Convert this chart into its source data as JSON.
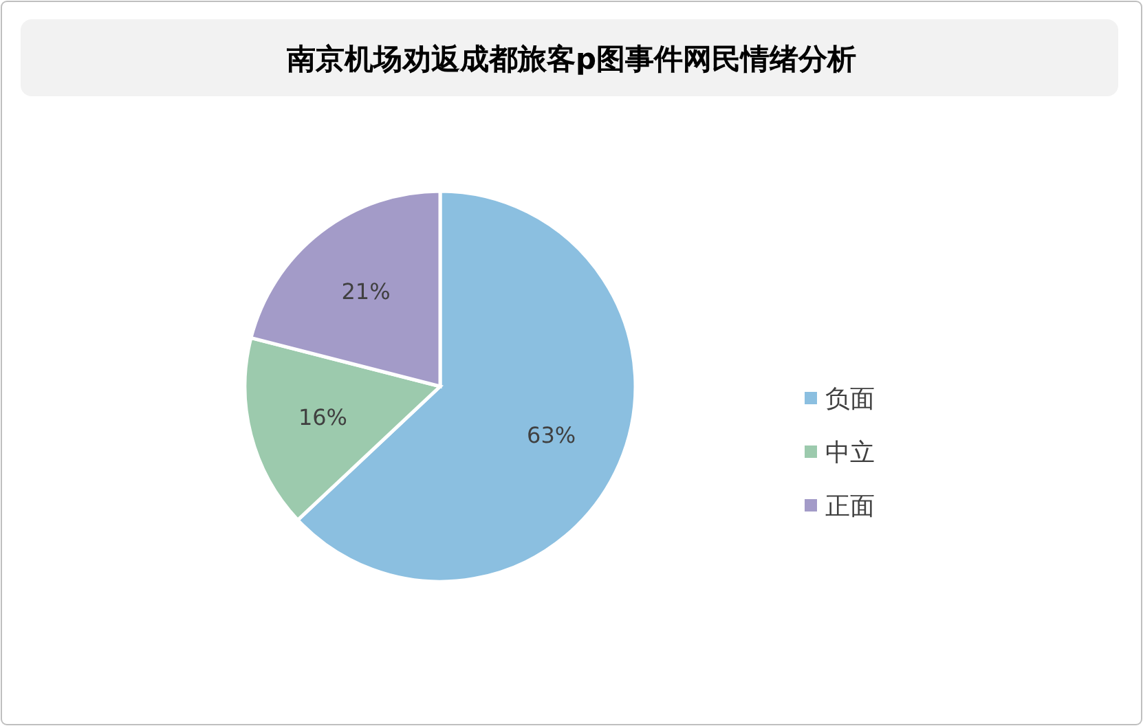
{
  "chart_data": {
    "type": "pie",
    "title": "南京机场劝返成都旅客p图事件网民情绪分析",
    "categories": [
      "负面",
      "中立",
      "正面"
    ],
    "values": [
      63,
      16,
      21
    ],
    "colors": [
      "#8bbfe0",
      "#9ccaad",
      "#a39bc8"
    ],
    "value_labels": [
      "63%",
      "16%",
      "21%"
    ],
    "legend": "right"
  }
}
